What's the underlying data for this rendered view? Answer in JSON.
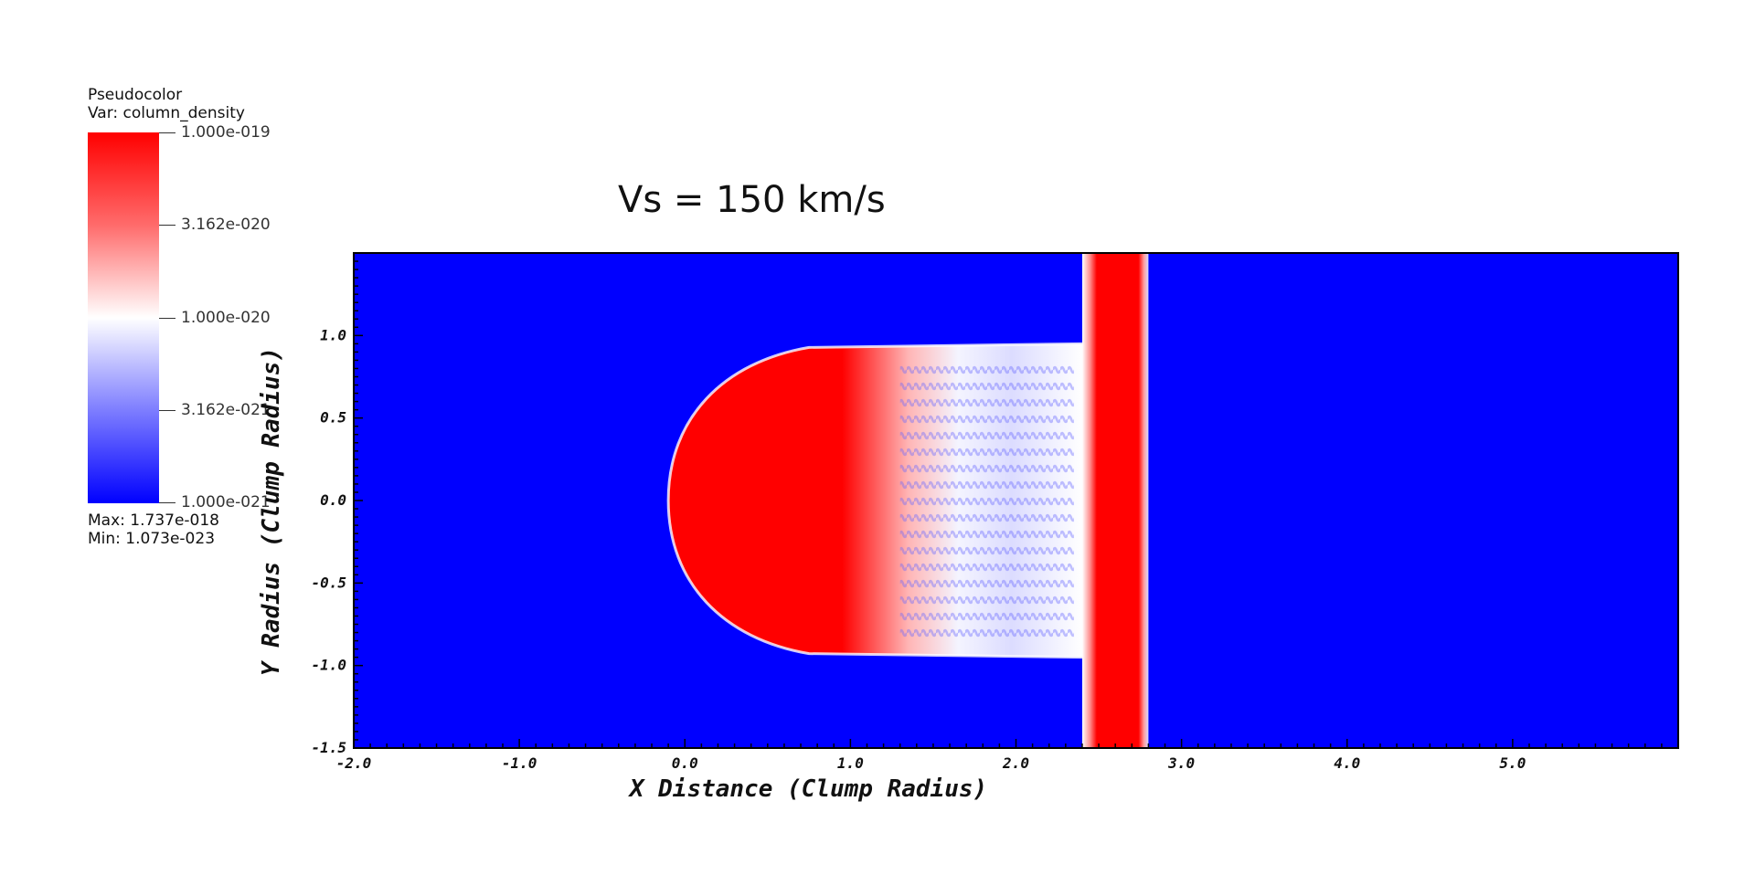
{
  "legend": {
    "plot_type": "Pseudocolor",
    "variable": "Var: column_density",
    "tick_labels": [
      "1.000e-019",
      "3.162e-020",
      "1.000e-020",
      "3.162e-021",
      "1.000e-021"
    ],
    "max_text": "Max:  1.737e-018",
    "min_text": "Min:  1.073e-023",
    "colors": {
      "high": "#ff0000",
      "mid": "#ffffff",
      "low": "#0000ff"
    }
  },
  "chart_data": {
    "type": "heatmap",
    "title": "Vs = 150 km/s",
    "xlabel": "X Distance (Clump Radius)",
    "ylabel": "Y Radius (Clump Radius)",
    "xlim": [
      -2.0,
      6.0
    ],
    "ylim": [
      -1.5,
      1.5
    ],
    "x_ticks": [
      "-2.0",
      "-1.0",
      "0.0",
      "1.0",
      "2.0",
      "3.0",
      "4.0",
      "5.0"
    ],
    "y_ticks": [
      "-1.5",
      "-1.0",
      "-0.5",
      "0.0",
      "0.5",
      "1.0"
    ],
    "x_tick_values": [
      -2.0,
      -1.0,
      0.0,
      1.0,
      2.0,
      3.0,
      4.0,
      5.0
    ],
    "y_tick_values": [
      -1.5,
      -1.0,
      -0.5,
      0.0,
      0.5,
      1.0
    ],
    "colorscale": "log",
    "features": {
      "shocked_sheet": {
        "x_min": 2.4,
        "x_max": 2.8,
        "level": "high"
      },
      "clump": {
        "x_leading": -0.1,
        "x_trailing": 2.4,
        "y_half_width": 0.95
      },
      "background_level": "low"
    }
  }
}
